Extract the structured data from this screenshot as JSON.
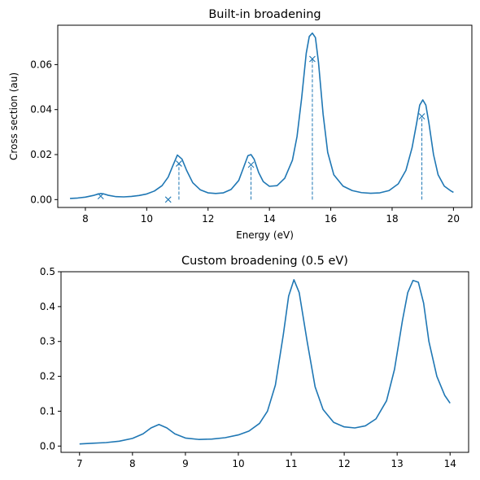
{
  "chart_data": [
    {
      "type": "line",
      "title": "Built-in broadening",
      "xlabel": "Energy (eV)",
      "ylabel": "Cross section (au)",
      "xlim": [
        7.1,
        20.6
      ],
      "ylim": [
        -0.0035,
        0.0775
      ],
      "xticks": [
        8,
        10,
        12,
        14,
        16,
        18,
        20
      ],
      "yticks": [
        0.0,
        0.02,
        0.04,
        0.06
      ],
      "ytick_labels": [
        "0.00",
        "0.02",
        "0.04",
        "0.06"
      ],
      "grid": false,
      "color": "#1f77b4",
      "curve": {
        "x": [
          7.5,
          7.75,
          8.0,
          8.25,
          8.4,
          8.5,
          8.6,
          8.75,
          9.0,
          9.25,
          9.5,
          9.75,
          10.0,
          10.25,
          10.5,
          10.7,
          10.85,
          11.0,
          11.15,
          11.3,
          11.5,
          11.75,
          12.0,
          12.25,
          12.5,
          12.75,
          13.0,
          13.15,
          13.3,
          13.4,
          13.5,
          13.65,
          13.8,
          14.0,
          14.25,
          14.5,
          14.75,
          14.9,
          15.05,
          15.2,
          15.3,
          15.4,
          15.5,
          15.6,
          15.75,
          15.9,
          16.1,
          16.4,
          16.7,
          17.0,
          17.3,
          17.6,
          17.9,
          18.2,
          18.45,
          18.65,
          18.8,
          18.9,
          19.0,
          19.1,
          19.2,
          19.35,
          19.5,
          19.7,
          19.9,
          20.0
        ],
        "y": [
          0.0005,
          0.0007,
          0.0011,
          0.0018,
          0.0024,
          0.0027,
          0.0025,
          0.0019,
          0.0013,
          0.0012,
          0.0014,
          0.0018,
          0.0025,
          0.0038,
          0.0062,
          0.01,
          0.015,
          0.0198,
          0.018,
          0.013,
          0.0075,
          0.0043,
          0.003,
          0.0027,
          0.003,
          0.0045,
          0.0085,
          0.014,
          0.0195,
          0.02,
          0.018,
          0.012,
          0.008,
          0.0059,
          0.0062,
          0.0095,
          0.0175,
          0.028,
          0.045,
          0.065,
          0.0725,
          0.074,
          0.072,
          0.061,
          0.038,
          0.021,
          0.011,
          0.006,
          0.004,
          0.0031,
          0.0028,
          0.003,
          0.004,
          0.007,
          0.013,
          0.023,
          0.034,
          0.042,
          0.0443,
          0.042,
          0.034,
          0.02,
          0.011,
          0.006,
          0.004,
          0.0032
        ]
      },
      "sticks": {
        "x": [
          8.5,
          10.7,
          11.05,
          13.4,
          15.4,
          18.97
        ],
        "y": [
          0.0015,
          0.0,
          0.016,
          0.0155,
          0.0625,
          0.037
        ],
        "dashed_lines_x": [
          11.05,
          13.4,
          15.4,
          18.97
        ]
      }
    },
    {
      "type": "line",
      "title": "Custom broadening (0.5 eV)",
      "xlabel": "",
      "ylabel": "",
      "xlim": [
        6.65,
        14.35
      ],
      "ylim": [
        -0.018,
        0.5
      ],
      "xticks": [
        7,
        8,
        9,
        10,
        11,
        12,
        13,
        14
      ],
      "yticks": [
        0.0,
        0.1,
        0.2,
        0.3,
        0.4,
        0.5
      ],
      "ytick_labels": [
        "0.0",
        "0.1",
        "0.2",
        "0.3",
        "0.4",
        "0.5"
      ],
      "grid": false,
      "color": "#1f77b4",
      "curve": {
        "x": [
          7.0,
          7.25,
          7.5,
          7.75,
          8.0,
          8.2,
          8.35,
          8.5,
          8.65,
          8.8,
          9.0,
          9.25,
          9.5,
          9.75,
          10.0,
          10.2,
          10.4,
          10.55,
          10.7,
          10.85,
          10.95,
          11.05,
          11.15,
          11.3,
          11.45,
          11.6,
          11.8,
          12.0,
          12.2,
          12.4,
          12.6,
          12.8,
          12.95,
          13.1,
          13.2,
          13.3,
          13.4,
          13.5,
          13.6,
          13.75,
          13.9,
          14.0
        ],
        "y": [
          0.006,
          0.008,
          0.01,
          0.014,
          0.022,
          0.035,
          0.052,
          0.062,
          0.052,
          0.035,
          0.023,
          0.019,
          0.02,
          0.024,
          0.032,
          0.043,
          0.065,
          0.1,
          0.175,
          0.32,
          0.43,
          0.477,
          0.44,
          0.3,
          0.17,
          0.105,
          0.068,
          0.055,
          0.052,
          0.058,
          0.078,
          0.13,
          0.22,
          0.36,
          0.44,
          0.475,
          0.47,
          0.41,
          0.3,
          0.2,
          0.145,
          0.123
        ]
      }
    }
  ]
}
